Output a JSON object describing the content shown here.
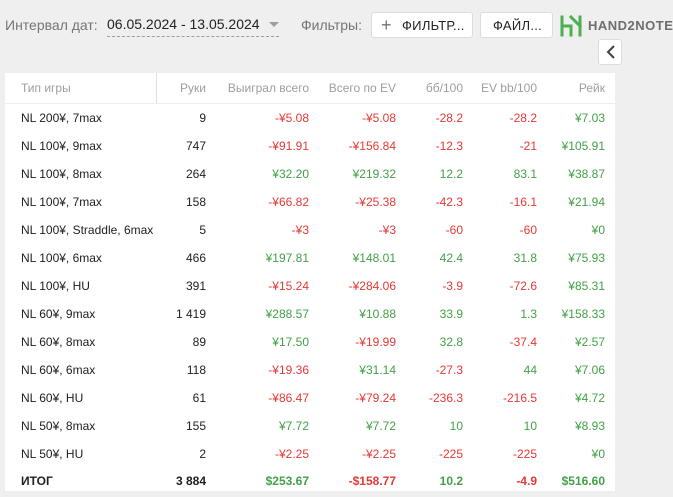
{
  "topbar": {
    "interval_label": "Интервал дат:",
    "date_range": "06.05.2024 - 13.05.2024",
    "filters_label": "Фильтры:",
    "filter_button": "ФИЛЬТР...",
    "file_button": "ФАЙЛ...",
    "brand": "HAND2NOTE",
    "brand_color": "#4caf50"
  },
  "table": {
    "columns": [
      "Тип игры",
      "Руки",
      "Выиграл всего",
      "Всего по EV",
      "бб/100",
      "EV bb/100",
      "Рейк"
    ],
    "rows": [
      {
        "game": "NL 200¥, 7max",
        "hands": "9",
        "won": "-¥5.08",
        "ev": "-¥5.08",
        "bb": "-28.2",
        "evbb": "-28.2",
        "rake": "¥7.03"
      },
      {
        "game": "NL 100¥, 9max",
        "hands": "747",
        "won": "-¥91.91",
        "ev": "-¥156.84",
        "bb": "-12.3",
        "evbb": "-21",
        "rake": "¥105.91"
      },
      {
        "game": "NL 100¥, 8max",
        "hands": "264",
        "won": "¥32.20",
        "ev": "¥219.32",
        "bb": "12.2",
        "evbb": "83.1",
        "rake": "¥38.87"
      },
      {
        "game": "NL 100¥, 7max",
        "hands": "158",
        "won": "-¥66.82",
        "ev": "-¥25.38",
        "bb": "-42.3",
        "evbb": "-16.1",
        "rake": "¥21.94"
      },
      {
        "game": "NL 100¥, Straddle, 6max",
        "hands": "5",
        "won": "-¥3",
        "ev": "-¥3",
        "bb": "-60",
        "evbb": "-60",
        "rake": "¥0"
      },
      {
        "game": "NL 100¥, 6max",
        "hands": "466",
        "won": "¥197.81",
        "ev": "¥148.01",
        "bb": "42.4",
        "evbb": "31.8",
        "rake": "¥75.93"
      },
      {
        "game": "NL 100¥, HU",
        "hands": "391",
        "won": "-¥15.24",
        "ev": "-¥284.06",
        "bb": "-3.9",
        "evbb": "-72.6",
        "rake": "¥85.31"
      },
      {
        "game": "NL 60¥, 9max",
        "hands": "1 419",
        "won": "¥288.57",
        "ev": "¥10.88",
        "bb": "33.9",
        "evbb": "1.3",
        "rake": "¥158.33"
      },
      {
        "game": "NL 60¥, 8max",
        "hands": "89",
        "won": "¥17.50",
        "ev": "-¥19.99",
        "bb": "32.8",
        "evbb": "-37.4",
        "rake": "¥2.57"
      },
      {
        "game": "NL 60¥, 6max",
        "hands": "118",
        "won": "-¥19.36",
        "ev": "¥31.14",
        "bb": "-27.3",
        "evbb": "44",
        "rake": "¥7.06"
      },
      {
        "game": "NL 60¥, HU",
        "hands": "61",
        "won": "-¥86.47",
        "ev": "-¥79.24",
        "bb": "-236.3",
        "evbb": "-216.5",
        "rake": "¥4.72"
      },
      {
        "game": "NL 50¥, 8max",
        "hands": "155",
        "won": "¥7.72",
        "ev": "¥7.72",
        "bb": "10",
        "evbb": "10",
        "rake": "¥8.93"
      },
      {
        "game": "NL 50¥, HU",
        "hands": "2",
        "won": "-¥2.25",
        "ev": "-¥2.25",
        "bb": "-225",
        "evbb": "-225",
        "rake": "¥0"
      }
    ],
    "total": {
      "game": "ИТОГ",
      "hands": "3 884",
      "won": "$253.67",
      "ev": "-$158.77",
      "bb": "10.2",
      "evbb": "-4.9",
      "rake": "$516.60"
    }
  }
}
